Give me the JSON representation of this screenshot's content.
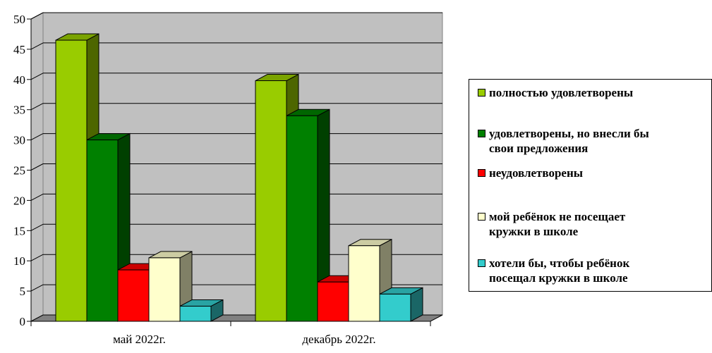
{
  "chart_data": {
    "type": "bar",
    "categories": [
      "май 2022г.",
      "декабрь 2022г."
    ],
    "ylim": [
      0,
      50
    ],
    "yticks": [
      0,
      5,
      10,
      15,
      20,
      25,
      30,
      35,
      40,
      45,
      50
    ],
    "grid": true,
    "legend_position": "right",
    "series": [
      {
        "name": "полностью удовлетворены",
        "values": [
          46.5,
          39.8
        ],
        "color": "#99cc00"
      },
      {
        "name": "удовлетворены, но внесли бы свои предложения",
        "values": [
          30,
          34
        ],
        "color": "#008000"
      },
      {
        "name": "неудовлетворены",
        "values": [
          8.5,
          6.5
        ],
        "color": "#ff0000"
      },
      {
        "name": "мой ребёнок не посещает кружки в школе",
        "values": [
          10.5,
          12.5
        ],
        "color": "#ffffcc"
      },
      {
        "name": "хотели бы, чтобы ребёнок посещал кружки в школе",
        "values": [
          2.5,
          4.5
        ],
        "color": "#33cccc"
      }
    ],
    "legend_lines": [
      [
        "полностью удовлетворены"
      ],
      [
        "удовлетворены, но внесли бы",
        "свои предложения"
      ],
      [
        "неудовлетворены"
      ],
      [
        "мой ребёнок не посещает",
        "кружки в школе"
      ],
      [
        "хотели бы, чтобы ребёнок",
        "посещал кружки в школе"
      ]
    ]
  }
}
